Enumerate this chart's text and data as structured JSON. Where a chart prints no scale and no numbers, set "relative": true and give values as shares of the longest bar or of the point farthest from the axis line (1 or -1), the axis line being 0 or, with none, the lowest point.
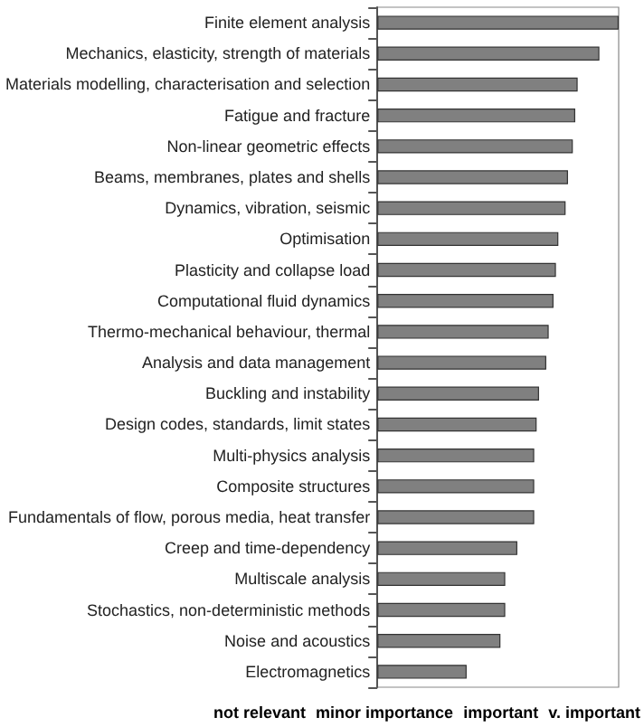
{
  "chart_data": {
    "type": "bar",
    "orientation": "horizontal",
    "relative": true,
    "categories": [
      "Finite element analysis",
      "Mechanics, elasticity, strength of materials",
      "Materials modelling, characterisation and selection",
      "Fatigue and fracture",
      "Non-linear geometric effects",
      "Beams, membranes, plates and shells",
      "Dynamics, vibration, seismic",
      "Optimisation",
      "Plasticity and collapse load",
      "Computational fluid dynamics",
      "Thermo-mechanical behaviour, thermal",
      "Analysis and data management",
      "Buckling and instability",
      "Design codes, standards, limit states",
      "Multi-physics analysis",
      "Composite structures",
      "Fundamentals of flow, porous media, heat transfer",
      "Creep and time-dependency",
      "Multiscale analysis",
      "Stochastics, non-deterministic methods",
      "Noise and acoustics",
      "Electromagnetics"
    ],
    "values": [
      1,
      0.92,
      0.83,
      0.82,
      0.81,
      0.79,
      0.78,
      0.75,
      0.74,
      0.73,
      0.71,
      0.7,
      0.67,
      0.66,
      0.65,
      0.65,
      0.65,
      0.58,
      0.53,
      0.53,
      0.51,
      0.37
    ],
    "color": "#808080",
    "annotations": [
      "not relevant",
      "minor importance",
      "important",
      "v. important"
    ]
  }
}
